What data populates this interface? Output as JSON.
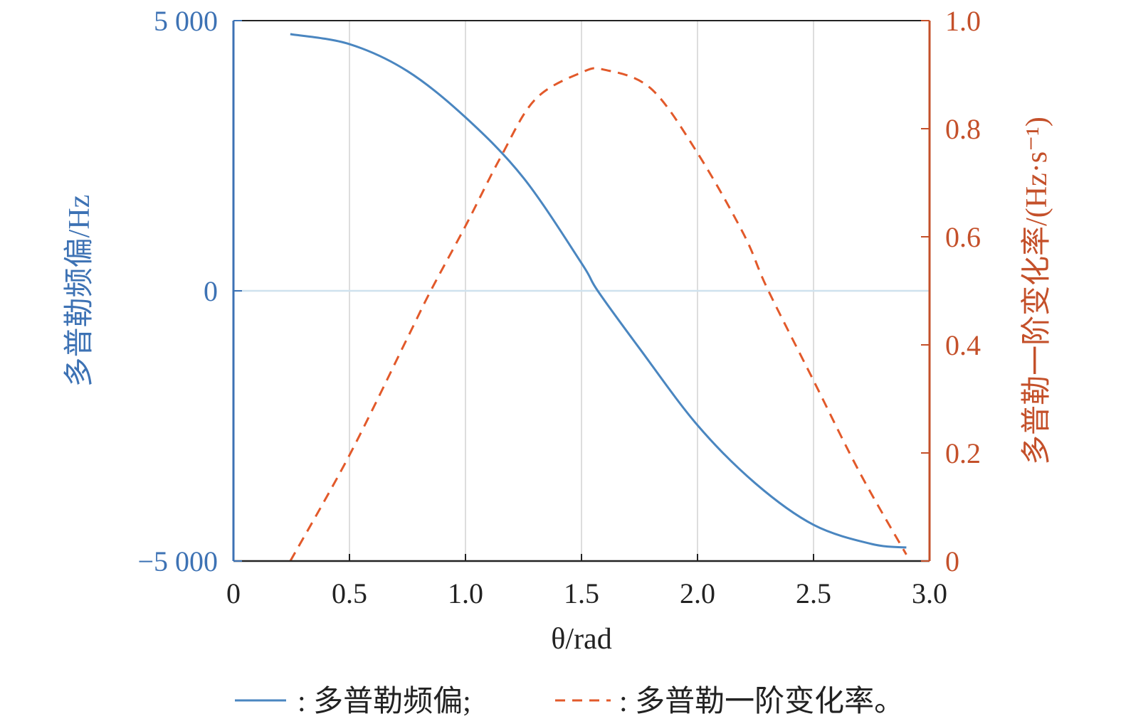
{
  "chart_data": {
    "type": "line",
    "xlabel": "θ/rad",
    "ylabel_left": "多普勒频偏/Hz",
    "ylabel_right": "多普勒一阶变化率/(Hz·s⁻¹)",
    "xlim": [
      0,
      3.0
    ],
    "ylim_left": [
      -5000,
      5000
    ],
    "ylim_right": [
      0,
      1.0
    ],
    "x_ticks": [
      "0",
      "0.5",
      "1.0",
      "1.5",
      "2.0",
      "2.5",
      "3.0"
    ],
    "x_tick_values": [
      0,
      0.5,
      1.0,
      1.5,
      2.0,
      2.5,
      3.0
    ],
    "y_left_ticks": [
      "5 000",
      "0",
      "−5 000"
    ],
    "y_left_tick_values": [
      5000,
      0,
      -5000
    ],
    "y_right_ticks": [
      "1.0",
      "0.8",
      "0.6",
      "0.4",
      "0.2",
      "0"
    ],
    "y_right_tick_values": [
      1.0,
      0.8,
      0.6,
      0.4,
      0.2,
      0
    ],
    "grid": "vertical",
    "legend_position": "bottom",
    "series": [
      {
        "name": "多普勒频偏",
        "legend_text": ": 多普勒频偏;",
        "axis": "left",
        "style": "solid",
        "color": "#4a86c0",
        "x": [
          0.245,
          0.5,
          0.75,
          1.0,
          1.25,
          1.5,
          1.57,
          1.75,
          2.0,
          2.25,
          2.5,
          2.75,
          2.9
        ],
        "y": [
          4750,
          4565,
          4065,
          3210,
          2090,
          513,
          0,
          -1065,
          -2487,
          -3565,
          -4330,
          -4684,
          -4750
        ]
      },
      {
        "name": "多普勒一阶变化率",
        "legend_text": ": 多普勒一阶变化率。",
        "axis": "right",
        "style": "dashed",
        "color": "#e2592a",
        "x": [
          0.245,
          0.5,
          0.75,
          0.85,
          1.0,
          1.15,
          1.3,
          1.5,
          1.6,
          1.8,
          2.0,
          2.2,
          2.3,
          2.5,
          2.7,
          2.9
        ],
        "y": [
          0.0,
          0.196,
          0.413,
          0.5,
          0.62,
          0.746,
          0.854,
          0.904,
          0.909,
          0.874,
          0.755,
          0.604,
          0.505,
          0.334,
          0.163,
          0.012
        ]
      }
    ]
  },
  "colors": {
    "left_axis": "#3d72b4",
    "right_axis": "#c4502a",
    "zero_line": "#cfe2ee",
    "grid": "#dddddd"
  }
}
